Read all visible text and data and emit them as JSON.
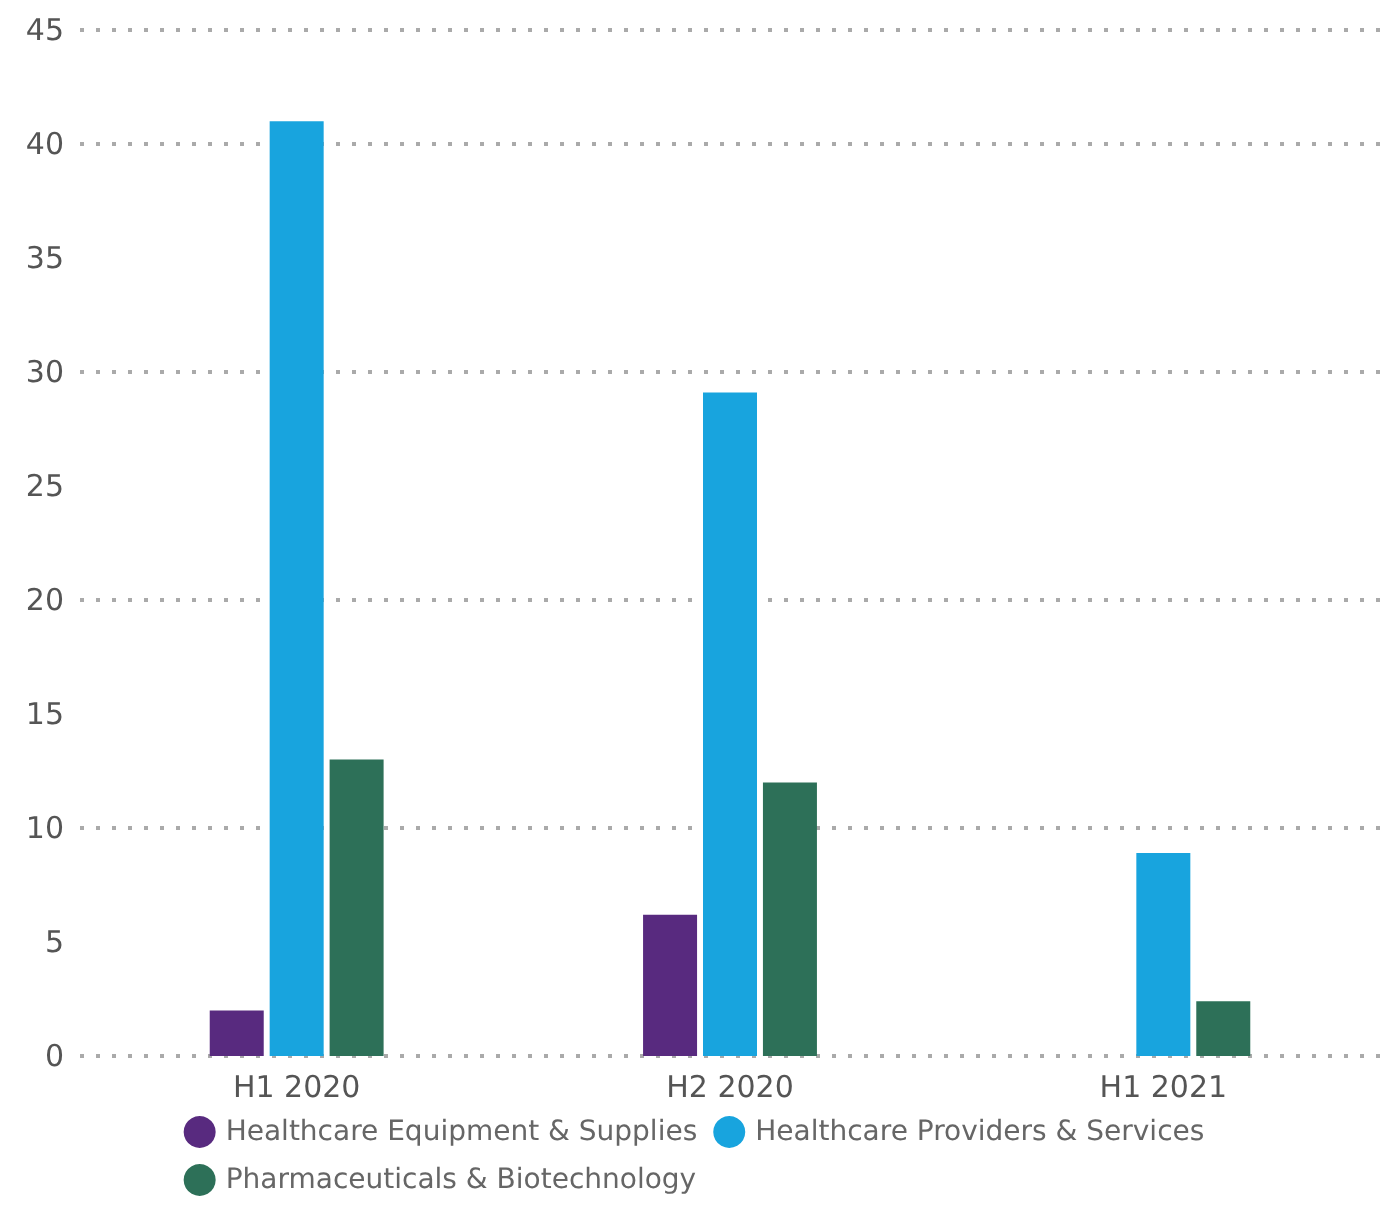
{
  "chart_data": {
    "type": "bar",
    "categories": [
      "H1 2020",
      "H2 2020",
      "H1 2021"
    ],
    "series": [
      {
        "name": "Healthcare Equipment & Supplies",
        "color": "#582a7f",
        "values": [
          2,
          6.2,
          0
        ]
      },
      {
        "name": "Healthcare Providers & Services",
        "color": "#18a4de",
        "values": [
          41,
          29.1,
          8.9
        ]
      },
      {
        "name": "Pharmaceuticals & Biotechnology",
        "color": "#2d7058",
        "values": [
          13,
          12,
          2.4
        ]
      }
    ],
    "ylim": [
      0,
      45
    ],
    "yticks": [
      0,
      5,
      10,
      15,
      20,
      25,
      30,
      35,
      40,
      45
    ],
    "grid": "y",
    "legend": "bottom"
  }
}
